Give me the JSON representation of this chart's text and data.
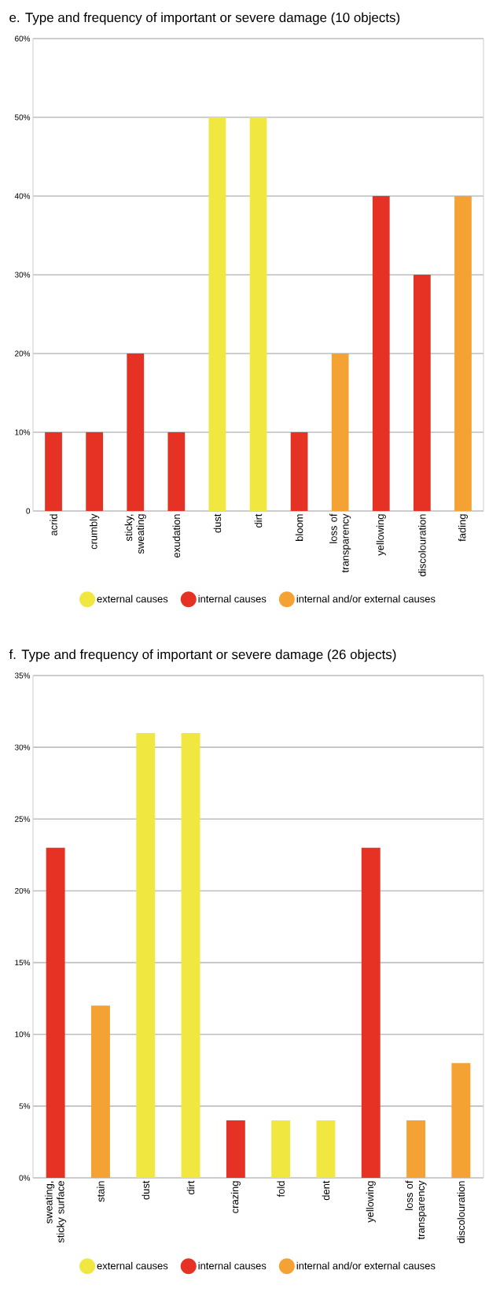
{
  "chart_data": [
    {
      "type": "bar",
      "title": "e. Type and frequency of important or severe damage (10 objects)",
      "categories": [
        "acrid",
        "crumbly",
        "sticky, sweating",
        "exudation",
        "dust",
        "dirt",
        "bloom",
        "loss of transparency",
        "yellowing",
        "discolouration",
        "fading"
      ],
      "series": [
        {
          "name": "external causes",
          "color": "#f0e840",
          "values": [
            null,
            null,
            null,
            null,
            50,
            50,
            null,
            null,
            null,
            null,
            null
          ]
        },
        {
          "name": "internal causes",
          "color": "#e53224",
          "values": [
            10,
            10,
            20,
            10,
            null,
            null,
            10,
            null,
            40,
            30,
            null
          ]
        },
        {
          "name": "internal and/or external causes",
          "color": "#f5a235",
          "values": [
            null,
            null,
            null,
            null,
            null,
            null,
            null,
            20,
            null,
            null,
            40
          ]
        }
      ],
      "ylim": [
        0,
        60
      ],
      "yticks": [
        {
          "value": 0,
          "label": "0"
        },
        {
          "value": 10,
          "label": "10%"
        },
        {
          "value": 20,
          "label": "20%"
        },
        {
          "value": 30,
          "label": "30%"
        },
        {
          "value": 40,
          "label": "40%"
        },
        {
          "value": 50,
          "label": "50%"
        },
        {
          "value": 60,
          "label": "60%"
        }
      ],
      "grid": "y",
      "legend": "bottom"
    },
    {
      "type": "bar",
      "title": "f. Type and frequency of important or severe damage (26 objects)",
      "categories": [
        "sweating, sticky surface",
        "stain",
        "dust",
        "dirt",
        "crazing",
        "fold",
        "dent",
        "yellowing",
        "loss of transparency",
        "discolouration"
      ],
      "series": [
        {
          "name": "external causes",
          "color": "#f0e840",
          "values": [
            null,
            null,
            31,
            31,
            null,
            4,
            4,
            null,
            null,
            null
          ]
        },
        {
          "name": "internal causes",
          "color": "#e53224",
          "values": [
            23,
            null,
            null,
            null,
            4,
            null,
            null,
            23,
            null,
            null
          ]
        },
        {
          "name": "internal and/or external causes",
          "color": "#f5a235",
          "values": [
            null,
            12,
            null,
            null,
            null,
            null,
            null,
            null,
            4,
            8
          ]
        }
      ],
      "ylim": [
        0,
        35
      ],
      "yticks": [
        {
          "value": 0,
          "label": "0%"
        },
        {
          "value": 5,
          "label": "5%"
        },
        {
          "value": 10,
          "label": "10%"
        },
        {
          "value": 15,
          "label": "15%"
        },
        {
          "value": 20,
          "label": "20%"
        },
        {
          "value": 25,
          "label": "25%"
        },
        {
          "value": 30,
          "label": "30%"
        },
        {
          "value": 35,
          "label": "35%"
        }
      ],
      "grid": "y",
      "legend": "bottom"
    }
  ]
}
